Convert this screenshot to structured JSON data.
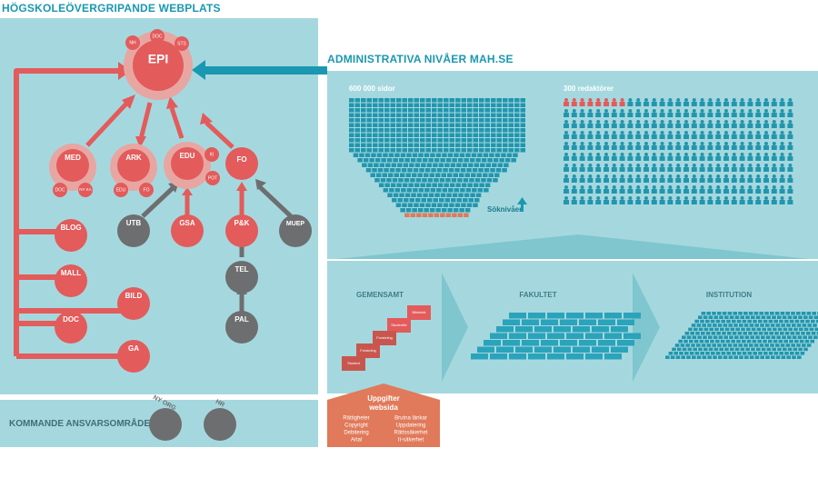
{
  "left_title": "HÖGSKOLEÖVERGRIPANDE WEBPLATS",
  "right_title": "ADMINISTRATIVA NIVÅER MAH.SE",
  "bottom_left_label": "KOMMANDE ANSVARSOMRÅDEN",
  "colors": {
    "panel": "#a5d8de",
    "red": "#e35b5b",
    "halo": "#e8a6a2",
    "gray": "#6d6e70",
    "teal_arrow": "#1a98b2",
    "heading": "#1a98b2",
    "teal_block": "#2296ae",
    "orange": "#e07a5a"
  },
  "hub": {
    "main": {
      "label": "EPI",
      "satellites": [
        "NH",
        "DOC",
        "STS"
      ]
    },
    "med": {
      "label": "MED",
      "satellites": [
        "DOC",
        "NY\nKA"
      ]
    },
    "ark": {
      "label": "ARK",
      "satellites": [
        "EDU",
        "FO"
      ]
    },
    "edu": {
      "label": "EDU",
      "satellites": [
        "KI",
        "POT"
      ]
    },
    "fo": {
      "label": "FO"
    },
    "gray_nodes": [
      "UTB",
      "MUEP",
      "TEL",
      "PAL"
    ],
    "red_nodes": [
      "GSA",
      "P&K",
      "BLOG",
      "MALL",
      "BILD",
      "DOC",
      "GA"
    ]
  },
  "future": [
    "NY ORG",
    "HR"
  ],
  "admin": {
    "pages_label": "600 000 sidor",
    "editors_label": "300 redaktörer",
    "search_label": "Söknivåer"
  },
  "levels": {
    "gemensamt": "GEMENSAMT",
    "fakultet": "FAKULTET",
    "institution": "INSTITUTION",
    "gem_steps": [
      "Bibliotek",
      "Studentliv",
      "Forskning",
      "Forskning",
      "Student"
    ]
  },
  "tasks": {
    "title": "Uppgifter\nwebsida",
    "left": [
      "Rättigheter",
      "Copyright",
      "Debitering",
      "Artal"
    ],
    "right": [
      "Brutna länkar",
      "Uppdatering",
      "Rättssäkerhet",
      "It-säkerhet"
    ]
  }
}
